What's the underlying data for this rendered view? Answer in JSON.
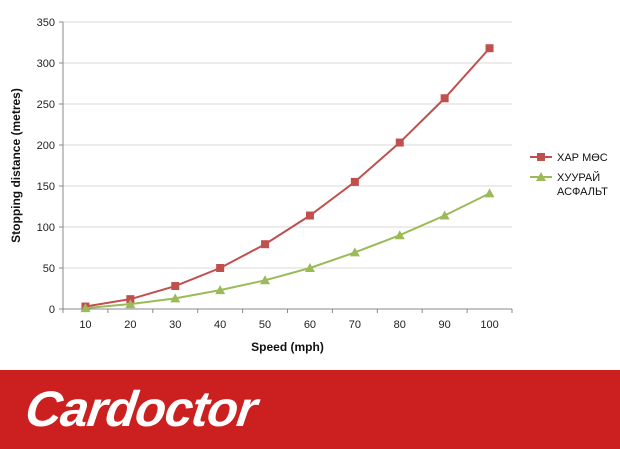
{
  "chart_data": {
    "type": "line",
    "title": "",
    "xlabel": "Speed (mph)",
    "ylabel": "Stopping distance (metres)",
    "x": [
      10,
      20,
      30,
      40,
      50,
      60,
      70,
      80,
      90,
      100
    ],
    "x_ticks": [
      "10",
      "20",
      "30",
      "40",
      "50",
      "60",
      "70",
      "80",
      "90",
      "100"
    ],
    "ylim": [
      0,
      350
    ],
    "y_ticks": [
      0,
      50,
      100,
      150,
      200,
      250,
      300,
      350
    ],
    "grid": "horizontal",
    "legend_position": "right",
    "series": [
      {
        "name": "ХАР МӨС",
        "marker": "square",
        "color": "#c0504d",
        "values": [
          3,
          12,
          28,
          50,
          79,
          114,
          155,
          203,
          257,
          318
        ]
      },
      {
        "name": "ХУУРАЙ АСФАЛЬТ",
        "name_lines": [
          "ХУУРАЙ",
          "АСФАЛЬТ"
        ],
        "marker": "triangle",
        "color": "#9bbb59",
        "values": [
          1,
          6,
          13,
          23,
          35,
          50,
          69,
          90,
          114,
          141
        ]
      }
    ]
  },
  "footer": {
    "brand": "Cardoctor",
    "color": "#cc1f1f"
  }
}
